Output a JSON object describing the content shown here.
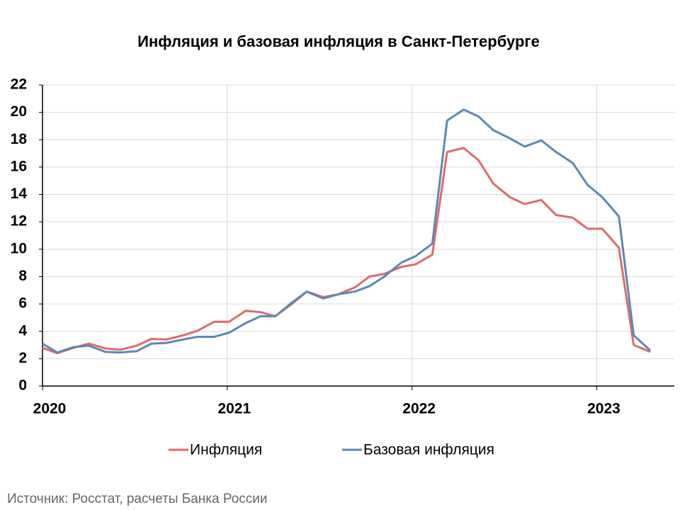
{
  "chart_data": {
    "type": "line",
    "title": "Инфляция и базовая инфляция в Санкт-Петербурге",
    "source": "Источник: Росстат, расчеты Банка России",
    "x": [
      2020.0,
      2020.08,
      2020.17,
      2020.25,
      2020.34,
      2020.42,
      2020.51,
      2020.59,
      2020.67,
      2020.76,
      2020.84,
      2020.93,
      2021.01,
      2021.1,
      2021.18,
      2021.26,
      2021.35,
      2021.43,
      2021.52,
      2021.6,
      2021.69,
      2021.77,
      2021.85,
      2021.94,
      2022.02,
      2022.11,
      2022.19,
      2022.28,
      2022.36,
      2022.44,
      2022.53,
      2022.61,
      2022.7,
      2022.78,
      2022.87,
      2022.95,
      2023.03,
      2023.12,
      2023.2,
      2023.29
    ],
    "series": [
      {
        "name": "Инфляция",
        "color": "#e06a6a",
        "values": [
          2.8,
          2.4,
          2.8,
          3.1,
          2.75,
          2.65,
          2.95,
          3.45,
          3.4,
          3.7,
          4.05,
          4.7,
          4.7,
          5.5,
          5.4,
          5.1,
          6.0,
          6.9,
          6.5,
          6.7,
          7.2,
          8.0,
          8.2,
          8.7,
          8.9,
          9.6,
          17.1,
          17.4,
          16.5,
          14.8,
          13.8,
          13.3,
          13.6,
          12.5,
          12.3,
          11.5,
          11.5,
          10.1,
          3.0,
          2.5
        ]
      },
      {
        "name": "Базовая инфляция",
        "color": "#5b88b5",
        "values": [
          3.1,
          2.45,
          2.85,
          2.95,
          2.5,
          2.45,
          2.55,
          3.1,
          3.15,
          3.4,
          3.6,
          3.6,
          3.9,
          4.6,
          5.1,
          5.1,
          6.1,
          6.9,
          6.4,
          6.7,
          6.9,
          7.3,
          8.0,
          9.0,
          9.5,
          10.4,
          19.4,
          20.2,
          19.7,
          18.7,
          18.1,
          17.5,
          17.95,
          17.1,
          16.3,
          14.7,
          13.8,
          12.4,
          3.7,
          2.6
        ]
      }
    ],
    "xlim": [
      2020,
      2023.42
    ],
    "xticks": [
      2020,
      2021,
      2022,
      2023
    ],
    "ylim": [
      0,
      22
    ],
    "yticks": [
      0,
      2,
      4,
      6,
      8,
      10,
      12,
      14,
      16,
      18,
      20,
      22
    ],
    "grid": true,
    "legend": "bottom"
  }
}
